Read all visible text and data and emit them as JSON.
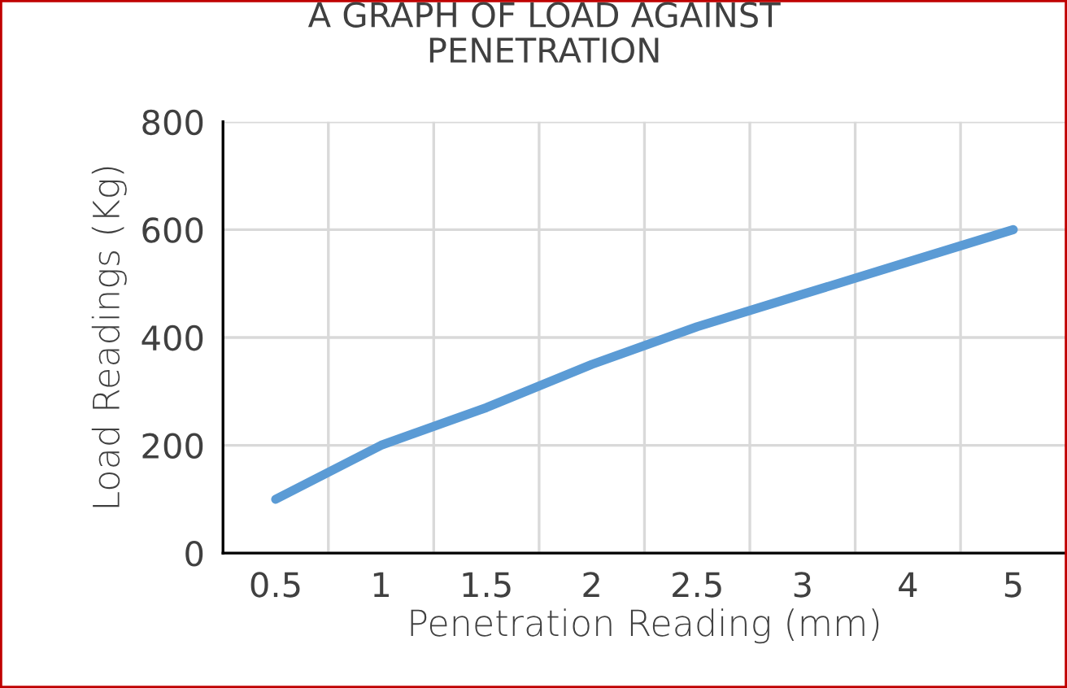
{
  "chart_data": {
    "type": "line",
    "title": "A GRAPH OF LOAD AGAINST\nPENETRATION",
    "xlabel": "Penetration Reading (mm)",
    "ylabel": "Load Readings (Kg)",
    "categories": [
      "0.5",
      "1",
      "1.5",
      "2",
      "2.5",
      "3",
      "4",
      "5"
    ],
    "series": [
      {
        "color": "#5b9bd5",
        "values": [
          100,
          200,
          270,
          350,
          420,
          480,
          540,
          600
        ]
      }
    ],
    "ylim": [
      0,
      800
    ],
    "yticks": [
      0,
      200,
      400,
      600,
      800
    ],
    "grid": true,
    "marker": "none",
    "line_style": "solid",
    "legend": false
  }
}
